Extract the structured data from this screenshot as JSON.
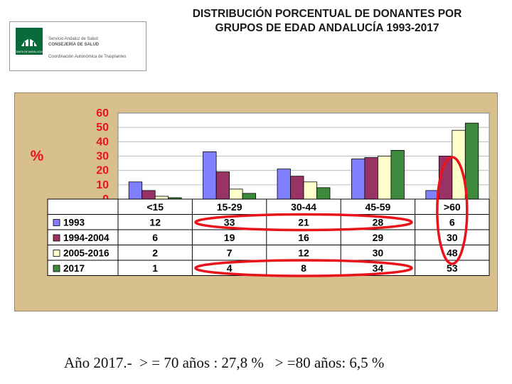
{
  "title_line1": "DISTRIBUCIÓN PORCENTUAL DE DONANTES POR",
  "title_line2": "GRUPOS DE EDAD ANDALUCÍA 1993-2017",
  "logo": {
    "line1": "Servicio Andaluz de Salud",
    "line2": "CONSEJERÍA DE SALUD",
    "line3": "Coordinación Autonómica de Trasplantes",
    "emblem_caption": "JUNTA DE ANDALUCIA"
  },
  "footer": "Año 2017.-  > = 70 años : 27,8 %   > =80 años: 6,5 %",
  "chart_data": {
    "type": "bar",
    "title": "DISTRIBUCIÓN PORCENTUAL DE DONANTES POR GRUPOS DE EDAD ANDALUCÍA 1993-2017",
    "ylabel": "%",
    "ylim": [
      0,
      60
    ],
    "yticks": [
      "60",
      "50",
      "40",
      "30",
      "20",
      "10",
      "0"
    ],
    "categories": [
      "<15",
      "15-29",
      "30-44",
      "45-59",
      ">60"
    ],
    "series": [
      {
        "name": "1993",
        "color": "#8080ff",
        "values": [
          12,
          33,
          21,
          28,
          6
        ]
      },
      {
        "name": "1994-2004",
        "color": "#993366",
        "values": [
          6,
          19,
          16,
          29,
          30
        ]
      },
      {
        "name": "2005-2016",
        "color": "#ffffcc",
        "values": [
          2,
          7,
          12,
          30,
          48
        ]
      },
      {
        "name": "2017",
        "color": "#3d8a3d",
        "values": [
          1,
          4,
          8,
          34,
          53
        ]
      }
    ],
    "grid": true,
    "legend": "data-table"
  },
  "annotation_color": "#e8141b"
}
